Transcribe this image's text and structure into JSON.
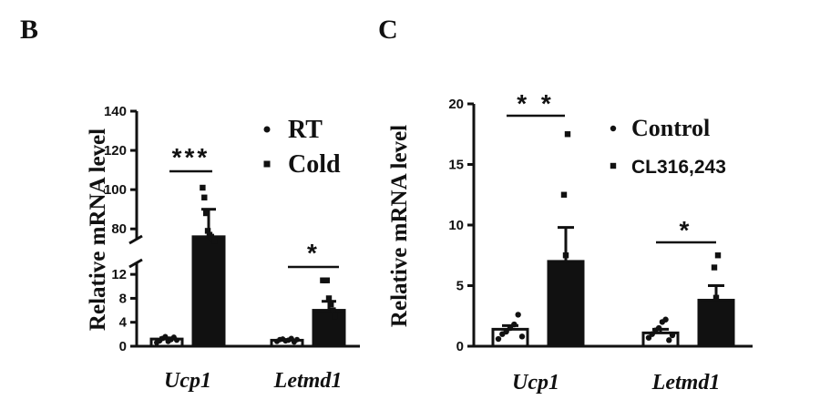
{
  "chart_data": [
    {
      "panel": "B",
      "type": "bar",
      "ylabel": "Relative mRNA level",
      "categories": [
        "Ucp1",
        "Letmd1"
      ],
      "series": [
        {
          "name": "RT",
          "values": [
            1.2,
            1.0
          ],
          "error": [
            0.2,
            0.1
          ],
          "points": [
            [
              0.6,
              0.9,
              1.3,
              1.6,
              0.8,
              1.1,
              1.5,
              1.0
            ],
            [
              0.8,
              1.1,
              1.2,
              0.9,
              1.0,
              1.3,
              0.7,
              1.1
            ]
          ]
        },
        {
          "name": "Cold",
          "values": [
            76,
            6
          ],
          "error": [
            14,
            1.5
          ],
          "points": [
            [
              101,
              96,
              88,
              79,
              77,
              76,
              75,
              74
            ],
            [
              11,
              11,
              11,
              8,
              7,
              6,
              5
            ]
          ]
        }
      ],
      "yaxis_broken": true,
      "lower_segment": {
        "range": [
          0,
          14
        ],
        "ticks": [
          0,
          4,
          8,
          12
        ]
      },
      "upper_segment": {
        "range": [
          75,
          140
        ],
        "ticks": [
          80,
          100,
          120,
          140
        ]
      },
      "significance": [
        {
          "category": "Ucp1",
          "label": "***"
        },
        {
          "category": "Letmd1",
          "label": "*"
        }
      ],
      "legend": [
        "RT",
        "Cold"
      ],
      "legend_position": "top-right"
    },
    {
      "panel": "C",
      "type": "bar",
      "ylabel": "Relative mRNA level",
      "categories": [
        "Ucp1",
        "Letmd1"
      ],
      "series": [
        {
          "name": "Control",
          "values": [
            1.4,
            1.1
          ],
          "error": [
            0.3,
            0.3
          ],
          "points": [
            [
              0.6,
              1.0,
              1.2,
              1.5,
              1.8,
              2.6,
              0.8
            ],
            [
              0.7,
              1.0,
              1.3,
              1.5,
              2.0,
              2.2,
              0.5,
              0.9
            ]
          ]
        },
        {
          "name": "CL316,243",
          "values": [
            7.0,
            3.8
          ],
          "error": [
            2.8,
            1.2
          ],
          "points": [
            [
              17.5,
              12.5,
              7.5
            ],
            [
              7.5,
              6.5,
              4.0
            ]
          ]
        }
      ],
      "ylim": [
        0,
        20
      ],
      "yticks": [
        0,
        5,
        10,
        15,
        20
      ],
      "significance": [
        {
          "category": "Ucp1",
          "label": "* *"
        },
        {
          "category": "Letmd1",
          "label": "*"
        }
      ],
      "legend": [
        "Control",
        "CL316,243"
      ],
      "legend_position": "top-right"
    }
  ]
}
